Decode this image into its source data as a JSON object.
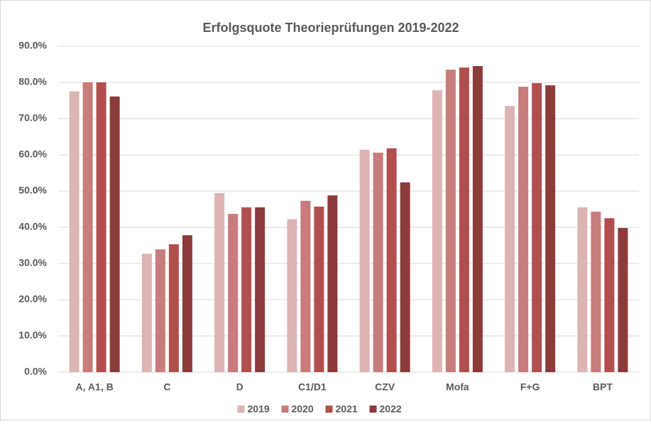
{
  "chart_data": {
    "type": "bar",
    "title": "Erfolgsquote Theorieprüfungen 2019-2022",
    "categories": [
      "A, A1, B",
      "C",
      "D",
      "C1/D1",
      "CZV",
      "Mofa",
      "F+G",
      "BPT"
    ],
    "series": [
      {
        "name": "2019",
        "color": "#dbb4b3",
        "values": [
          77.5,
          32.7,
          49.4,
          42.2,
          61.4,
          77.8,
          73.5,
          45.5
        ]
      },
      {
        "name": "2020",
        "color": "#c87c7b",
        "values": [
          80.0,
          33.9,
          43.7,
          47.3,
          60.6,
          83.5,
          78.8,
          44.3
        ]
      },
      {
        "name": "2021",
        "color": "#b14f4f",
        "values": [
          80.0,
          35.3,
          45.5,
          45.7,
          61.8,
          84.1,
          79.8,
          42.5
        ]
      },
      {
        "name": "2022",
        "color": "#8c3b3b",
        "values": [
          76.1,
          37.8,
          45.5,
          48.8,
          52.4,
          84.5,
          79.2,
          39.8
        ]
      }
    ],
    "ylim": [
      0,
      90
    ],
    "yticks": [
      {
        "value": 0,
        "label": "0.0%"
      },
      {
        "value": 10,
        "label": "10.0%"
      },
      {
        "value": 20,
        "label": "20.0%"
      },
      {
        "value": 30,
        "label": "30.0%"
      },
      {
        "value": 40,
        "label": "40.0%"
      },
      {
        "value": 50,
        "label": "50.0%"
      },
      {
        "value": 60,
        "label": "60.0%"
      },
      {
        "value": 70,
        "label": "70.0%"
      },
      {
        "value": 80,
        "label": "80.0%"
      },
      {
        "value": 90,
        "label": "90.0%"
      }
    ],
    "grid": true,
    "legend": "bottom"
  }
}
